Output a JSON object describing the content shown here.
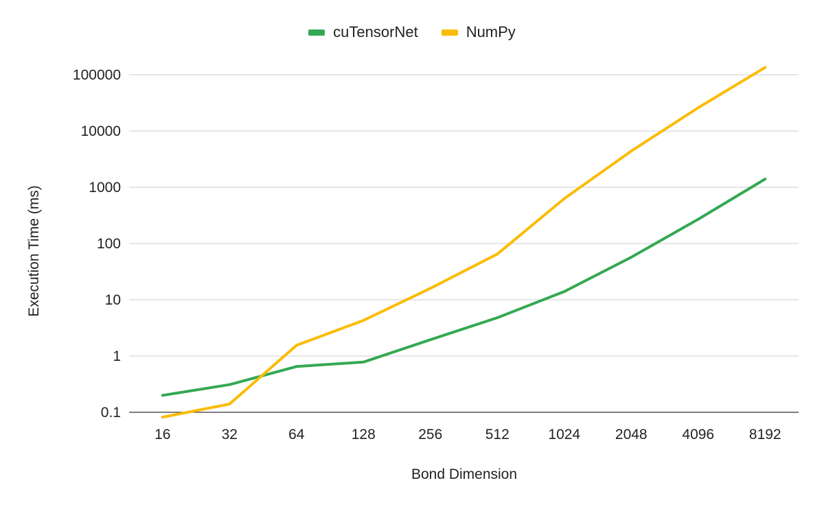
{
  "chart_data": {
    "type": "line",
    "categories": [
      "16",
      "32",
      "64",
      "128",
      "256",
      "512",
      "1024",
      "2048",
      "4096",
      "8192"
    ],
    "series": [
      {
        "name": "cuTensorNet",
        "color": "#34a853",
        "values": [
          0.2,
          0.31,
          0.65,
          0.78,
          1.95,
          4.8,
          14,
          57,
          270,
          1400
        ]
      },
      {
        "name": "NumPy",
        "color": "#fbbc04",
        "values": [
          0.082,
          0.14,
          1.55,
          4.3,
          16,
          65,
          630,
          4400,
          26000,
          135000
        ]
      }
    ],
    "xlabel": "Bond Dimension",
    "ylabel": "Execution Time (ms)",
    "yscale": "log",
    "ylim": [
      0.1,
      100000
    ],
    "yticks": [
      "0.1",
      "1",
      "10",
      "100",
      "1000",
      "10000",
      "100000"
    ],
    "grid": true,
    "legend_position": "top-center"
  }
}
